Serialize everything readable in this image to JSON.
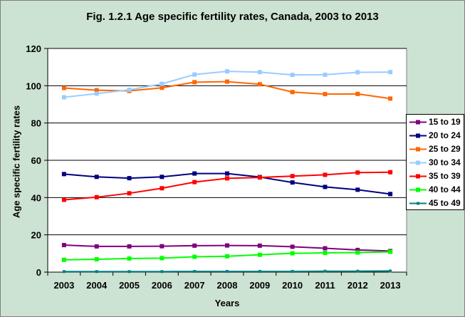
{
  "chart_data": {
    "type": "line",
    "title": "Fig. 1.2.1 Age specific fertility rates, Canada, 2003 to 2013",
    "xlabel": "Years",
    "ylabel": "Age specific fertility rates",
    "x": [
      "2003",
      "2004",
      "2005",
      "2006",
      "2007",
      "2008",
      "2009",
      "2010",
      "2011",
      "2012",
      "2013"
    ],
    "ylim": [
      0,
      120
    ],
    "yticks": [
      "0",
      "20",
      "40",
      "60",
      "80",
      "100",
      "120"
    ],
    "grid": "horizontal",
    "legend_position": "right",
    "series": [
      {
        "name": "15 to 19",
        "color": "#800080",
        "marker": "square",
        "values": [
          14.5,
          13.8,
          13.8,
          13.9,
          14.2,
          14.3,
          14.2,
          13.6,
          12.8,
          11.9,
          11.3
        ]
      },
      {
        "name": "20 to 24",
        "color": "#000080",
        "marker": "square",
        "values": [
          52.6,
          51.1,
          50.4,
          51.1,
          52.9,
          52.9,
          51.0,
          48.1,
          45.7,
          44.2,
          41.9
        ]
      },
      {
        "name": "25 to 29",
        "color": "#ff6600",
        "marker": "square",
        "values": [
          98.8,
          97.6,
          97.2,
          98.9,
          101.9,
          102.2,
          100.8,
          96.6,
          95.5,
          95.6,
          93.1
        ]
      },
      {
        "name": "30 to 34",
        "color": "#99ccff",
        "marker": "square",
        "values": [
          93.8,
          95.8,
          97.8,
          101.0,
          106.0,
          107.7,
          107.3,
          105.8,
          105.9,
          107.2,
          107.3
        ]
      },
      {
        "name": "35 to 39",
        "color": "#ff0000",
        "marker": "square",
        "values": [
          38.8,
          40.2,
          42.3,
          45.0,
          48.3,
          50.3,
          50.8,
          51.5,
          52.2,
          53.4,
          53.6
        ]
      },
      {
        "name": "40 to 44",
        "color": "#00ff00",
        "marker": "square",
        "values": [
          6.6,
          6.9,
          7.3,
          7.5,
          8.2,
          8.5,
          9.3,
          10.1,
          10.3,
          10.5,
          10.9
        ]
      },
      {
        "name": "45 to 49",
        "color": "#008080",
        "marker": "small-square",
        "values": [
          0.3,
          0.3,
          0.3,
          0.3,
          0.4,
          0.4,
          0.4,
          0.4,
          0.5,
          0.5,
          0.6
        ]
      }
    ]
  }
}
